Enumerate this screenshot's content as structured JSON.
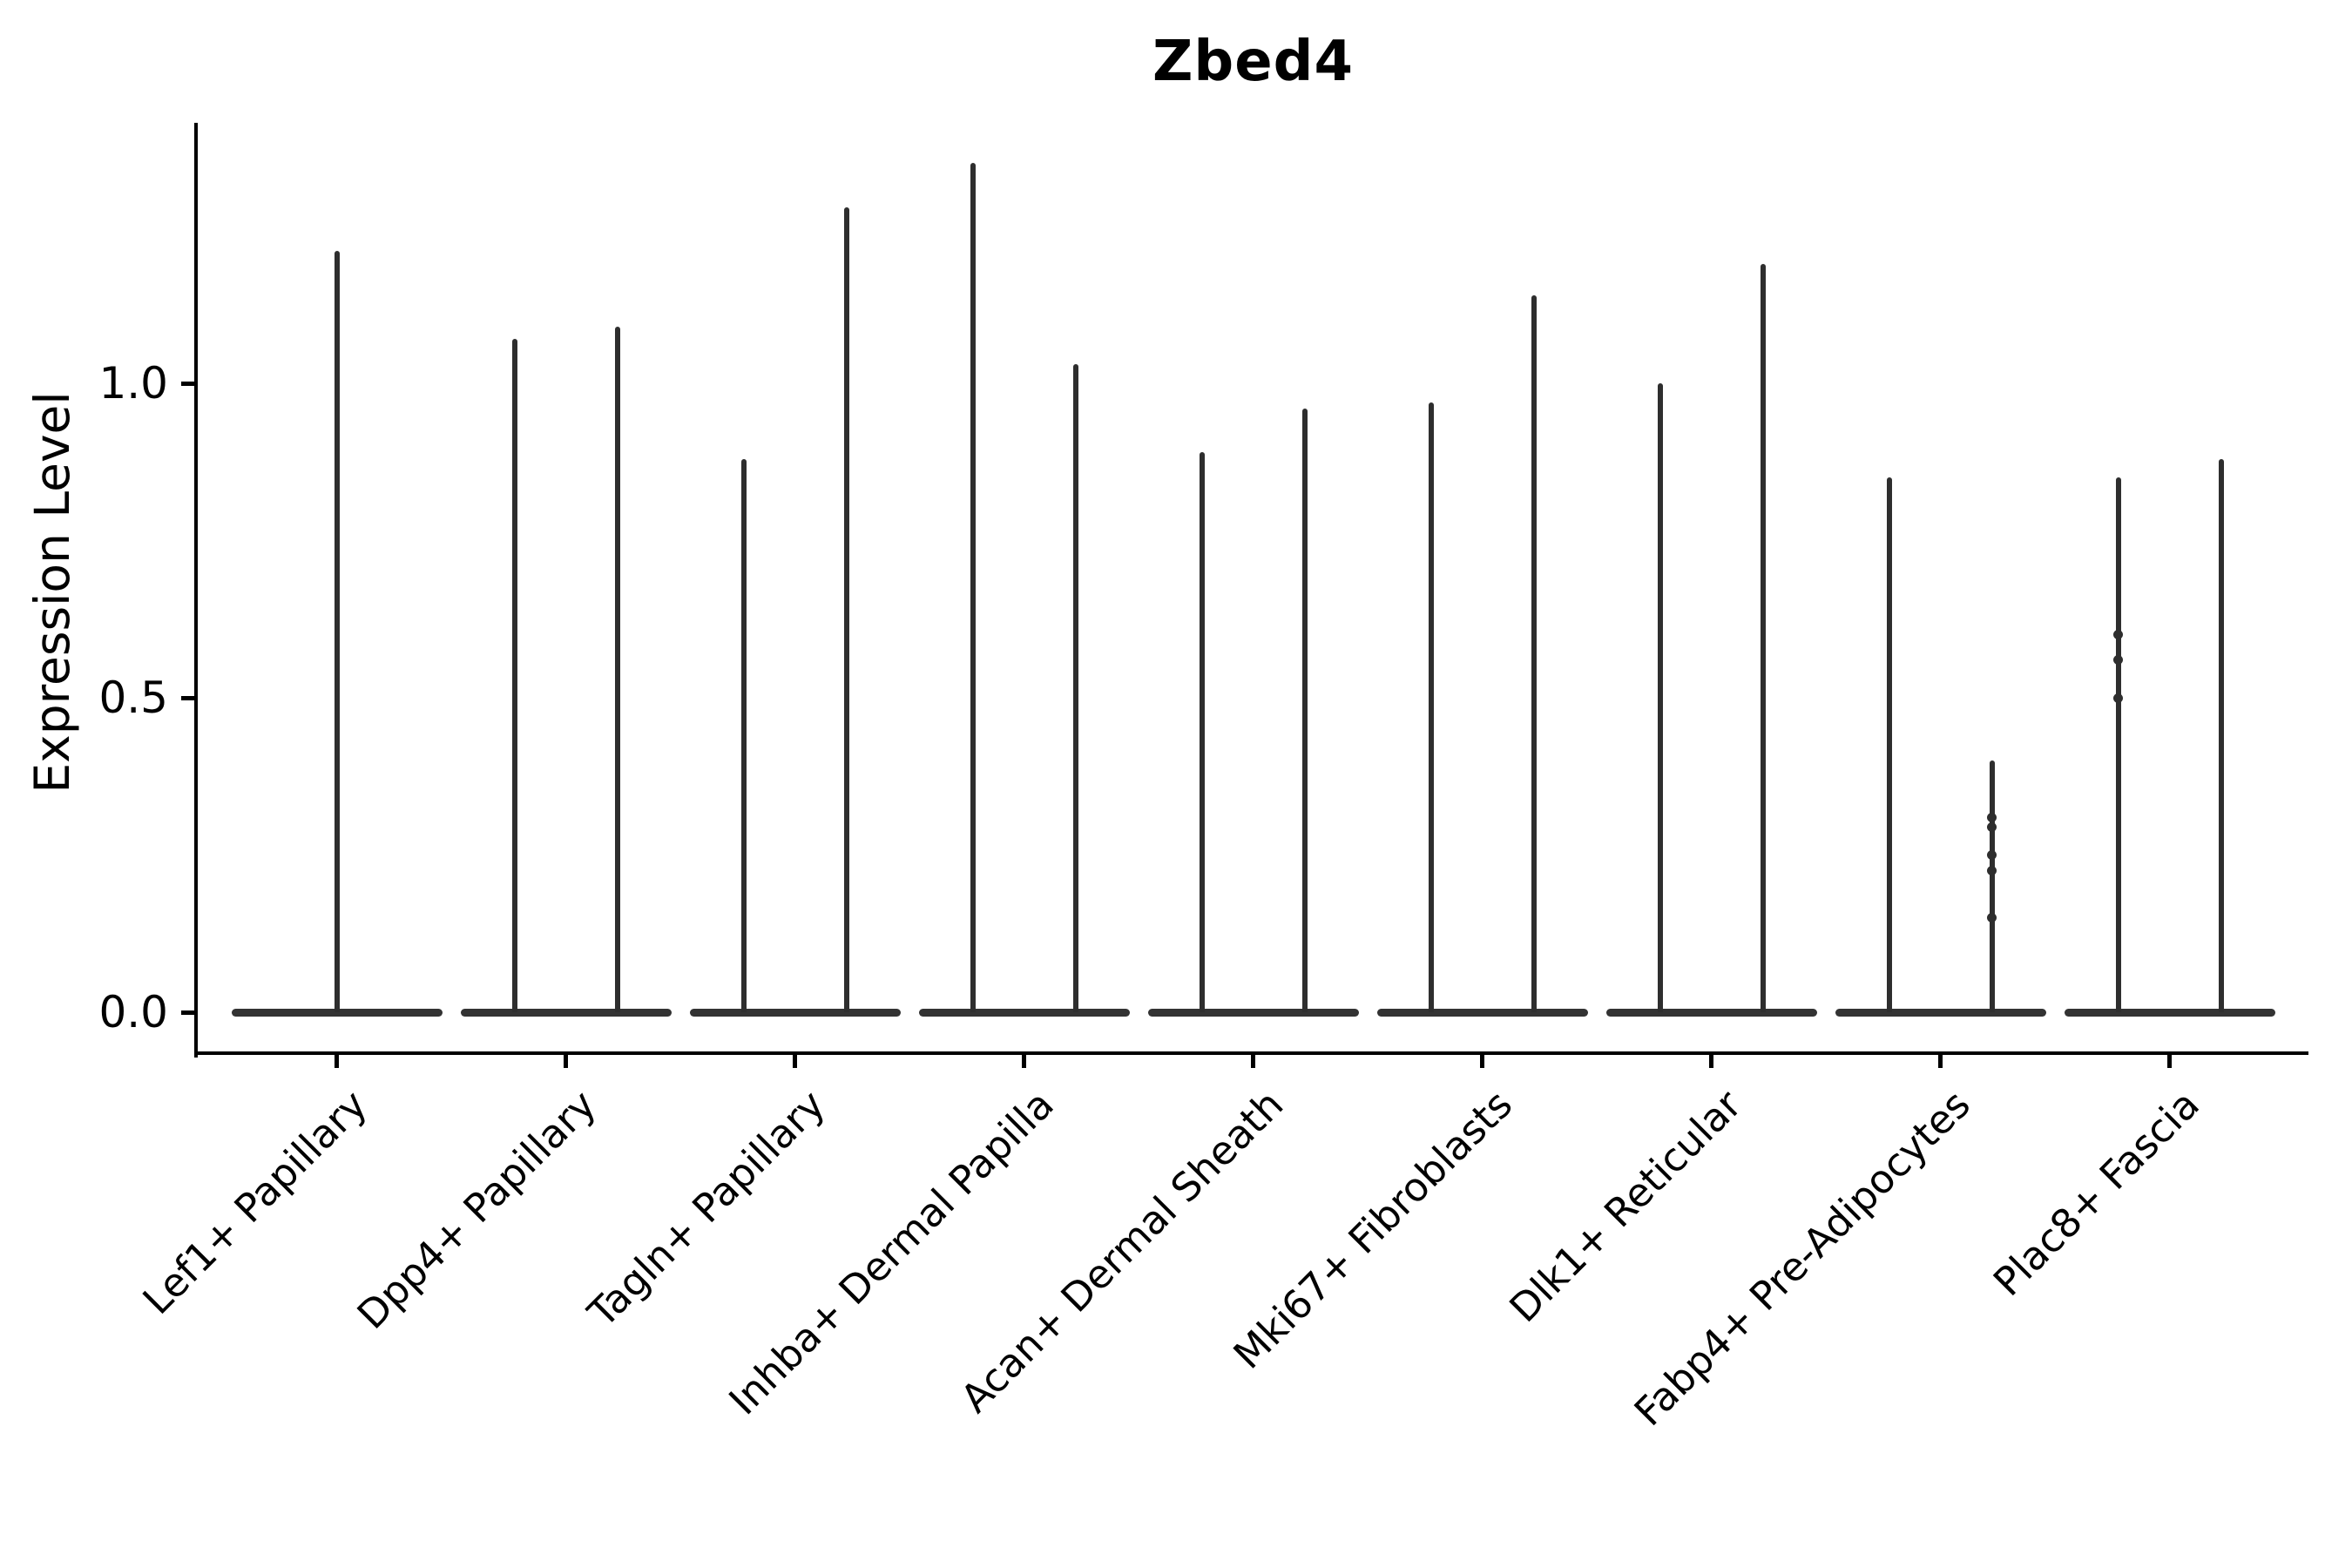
{
  "title": "Zbed4",
  "y_axis": {
    "label": "Expression Level",
    "tick_labels": [
      "0.0",
      "0.5",
      "1.0"
    ],
    "tick_values": [
      0.0,
      0.5,
      1.0
    ]
  },
  "colors": {
    "violin": "#2e2e2e",
    "baseline": "#333333",
    "axis": "#000000",
    "text": "#000000",
    "background": "#ffffff"
  },
  "chart_data": {
    "type": "violin",
    "title": "Zbed4",
    "xlabel": "",
    "ylabel": "Expression Level",
    "ylim": [
      -0.065,
      1.415
    ],
    "yticks": [
      0.0,
      0.5,
      1.0
    ],
    "grid": false,
    "legend": "none",
    "description": "Needle-thin violins (nearly all observations at 0) with a flat dense base at expression 0 and a thin spike up to the maximum expression value. Most cell types show two adjacent violins; the first shows one centered violin.",
    "categories": [
      "Lef1+ Papillary",
      "Dpp4+ Papillary",
      "Tagln+ Papillary",
      "Inhba+ Dermal Papilla",
      "Acan+ Dermal Sheath",
      "Mki67+ Fibroblasts",
      "Dlk1+ Reticular",
      "Fabp4+ Pre-Adipocytes",
      "Plac8+ Fascia"
    ],
    "series": [
      {
        "category": "Lef1+ Papillary",
        "violins": [
          {
            "slot": "center",
            "max": 1.21
          }
        ]
      },
      {
        "category": "Dpp4+ Papillary",
        "violins": [
          {
            "slot": "left",
            "max": 1.07
          },
          {
            "slot": "right",
            "max": 1.09
          }
        ]
      },
      {
        "category": "Tagln+ Papillary",
        "violins": [
          {
            "slot": "left",
            "max": 0.88
          },
          {
            "slot": "right",
            "max": 1.28
          }
        ]
      },
      {
        "category": "Inhba+ Dermal Papilla",
        "violins": [
          {
            "slot": "left",
            "max": 1.35
          },
          {
            "slot": "right",
            "max": 1.03
          }
        ]
      },
      {
        "category": "Acan+ Dermal Sheath",
        "violins": [
          {
            "slot": "left",
            "max": 0.89
          },
          {
            "slot": "right",
            "max": 0.96
          }
        ]
      },
      {
        "category": "Mki67+ Fibroblasts",
        "violins": [
          {
            "slot": "left",
            "max": 0.97
          },
          {
            "slot": "right",
            "max": 1.14
          }
        ]
      },
      {
        "category": "Dlk1+ Reticular",
        "violins": [
          {
            "slot": "left",
            "max": 1.0
          },
          {
            "slot": "right",
            "max": 1.19
          }
        ]
      },
      {
        "category": "Fabp4+ Pre-Adipocytes",
        "violins": [
          {
            "slot": "left",
            "max": 0.85
          },
          {
            "slot": "right",
            "max": 0.4,
            "dots": [
              0.31,
              0.295,
              0.25,
              0.225,
              0.15
            ]
          }
        ]
      },
      {
        "category": "Plac8+ Fascia",
        "violins": [
          {
            "slot": "left",
            "max": 0.85,
            "dots": [
              0.6,
              0.56,
              0.5
            ]
          },
          {
            "slot": "right",
            "max": 0.88
          }
        ]
      }
    ],
    "baseline_value": 0.0
  }
}
